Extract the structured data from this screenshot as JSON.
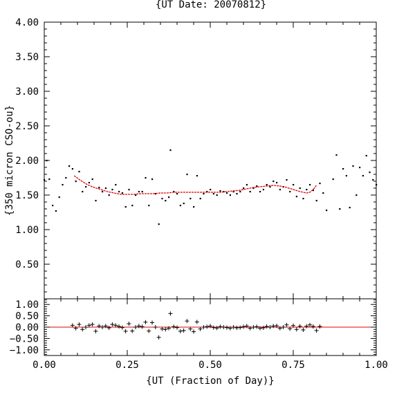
{
  "chart_data": [
    {
      "type": "scatter",
      "title": "{UT Date: 20070812}",
      "xlabel": "",
      "ylabel": "{350 micron CSO-ou}",
      "xlim": [
        0,
        1
      ],
      "ylim": [
        0,
        4
      ],
      "yticks": [
        "0.50",
        "1.00",
        "1.50",
        "2.00",
        "2.50",
        "3.00",
        "3.50",
        "4.00"
      ],
      "series": [
        {
          "marker": "dot",
          "color": "#000000",
          "x": [
            0.0,
            0.007,
            0.015,
            0.025,
            0.035,
            0.045,
            0.055,
            0.065,
            0.075,
            0.085,
            0.095,
            0.105,
            0.115,
            0.125,
            0.135,
            0.145,
            0.155,
            0.165,
            0.175,
            0.185,
            0.195,
            0.205,
            0.215,
            0.225,
            0.235,
            0.245,
            0.255,
            0.265,
            0.275,
            0.285,
            0.295,
            0.305,
            0.315,
            0.325,
            0.335,
            0.345,
            0.355,
            0.365,
            0.375,
            0.38,
            0.39,
            0.4,
            0.41,
            0.42,
            0.43,
            0.44,
            0.45,
            0.46,
            0.47,
            0.48,
            0.49,
            0.5,
            0.51,
            0.52,
            0.53,
            0.54,
            0.55,
            0.56,
            0.57,
            0.58,
            0.59,
            0.6,
            0.61,
            0.62,
            0.63,
            0.64,
            0.65,
            0.66,
            0.67,
            0.68,
            0.69,
            0.7,
            0.71,
            0.72,
            0.73,
            0.74,
            0.75,
            0.76,
            0.77,
            0.78,
            0.79,
            0.8,
            0.81,
            0.82,
            0.83,
            0.84,
            0.85,
            0.87,
            0.88,
            0.89,
            0.9,
            0.91,
            0.92,
            0.93,
            0.94,
            0.95,
            0.96,
            0.97,
            0.98,
            0.99,
            1.0
          ],
          "y": [
            1.72,
            2.0,
            1.73,
            1.35,
            1.27,
            1.47,
            1.65,
            1.75,
            1.92,
            1.88,
            1.7,
            1.84,
            1.55,
            1.62,
            1.68,
            1.73,
            1.42,
            1.61,
            1.55,
            1.6,
            1.5,
            1.58,
            1.65,
            1.55,
            1.53,
            1.33,
            1.58,
            1.35,
            1.5,
            1.55,
            1.55,
            1.75,
            1.35,
            1.73,
            1.52,
            1.08,
            1.45,
            1.42,
            1.47,
            2.15,
            1.55,
            1.52,
            1.35,
            1.38,
            1.8,
            1.45,
            1.33,
            1.78,
            1.45,
            1.52,
            1.55,
            1.58,
            1.52,
            1.5,
            1.56,
            1.55,
            1.53,
            1.5,
            1.55,
            1.52,
            1.55,
            1.6,
            1.65,
            1.55,
            1.6,
            1.63,
            1.55,
            1.58,
            1.65,
            1.62,
            1.7,
            1.68,
            1.58,
            1.62,
            1.72,
            1.55,
            1.65,
            1.48,
            1.6,
            1.45,
            1.58,
            1.65,
            1.57,
            1.42,
            1.67,
            1.53,
            1.28,
            1.73,
            2.08,
            1.3,
            1.88,
            1.78,
            1.32,
            1.92,
            1.5,
            1.9,
            1.78,
            2.07,
            1.83,
            1.72,
            1.65
          ]
        },
        {
          "marker": "line",
          "color": "#e00000",
          "x": [
            0.09,
            0.11,
            0.13,
            0.15,
            0.17,
            0.19,
            0.21,
            0.23,
            0.25,
            0.27,
            0.29,
            0.31,
            0.33,
            0.35,
            0.37,
            0.39,
            0.41,
            0.43,
            0.45,
            0.47,
            0.49,
            0.51,
            0.53,
            0.55,
            0.57,
            0.59,
            0.61,
            0.63,
            0.65,
            0.67,
            0.69,
            0.71,
            0.73,
            0.75,
            0.77,
            0.79,
            0.8,
            0.81,
            0.82
          ],
          "y": [
            1.78,
            1.71,
            1.65,
            1.61,
            1.58,
            1.55,
            1.53,
            1.51,
            1.51,
            1.51,
            1.52,
            1.52,
            1.52,
            1.53,
            1.53,
            1.54,
            1.54,
            1.54,
            1.54,
            1.54,
            1.54,
            1.54,
            1.54,
            1.55,
            1.56,
            1.57,
            1.59,
            1.61,
            1.62,
            1.63,
            1.64,
            1.63,
            1.61,
            1.58,
            1.55,
            1.53,
            1.54,
            1.58,
            1.64
          ]
        }
      ]
    },
    {
      "type": "scatter",
      "title": "",
      "xlabel": "{UT (Fraction of Day)}",
      "ylabel": "",
      "xlim": [
        0,
        1
      ],
      "ylim": [
        -1.25,
        1.25
      ],
      "xticks": [
        "0.00",
        "0.25",
        "0.50",
        "0.75",
        "1.00"
      ],
      "yticks": [
        "−1.00",
        "−0.50",
        "0.00",
        "0.50",
        "1.00"
      ],
      "reference_line": {
        "y": 0,
        "color": "#e00000"
      },
      "series": [
        {
          "marker": "plus",
          "color": "#000000",
          "x": [
            0.085,
            0.095,
            0.105,
            0.115,
            0.125,
            0.135,
            0.145,
            0.155,
            0.165,
            0.175,
            0.185,
            0.195,
            0.205,
            0.215,
            0.225,
            0.235,
            0.245,
            0.255,
            0.265,
            0.275,
            0.285,
            0.295,
            0.305,
            0.315,
            0.325,
            0.335,
            0.345,
            0.355,
            0.365,
            0.375,
            0.38,
            0.39,
            0.4,
            0.41,
            0.42,
            0.43,
            0.44,
            0.45,
            0.46,
            0.47,
            0.48,
            0.49,
            0.5,
            0.51,
            0.52,
            0.53,
            0.54,
            0.55,
            0.56,
            0.57,
            0.58,
            0.59,
            0.6,
            0.61,
            0.62,
            0.63,
            0.64,
            0.65,
            0.66,
            0.67,
            0.68,
            0.69,
            0.7,
            0.71,
            0.72,
            0.73,
            0.74,
            0.75,
            0.76,
            0.77,
            0.78,
            0.79,
            0.8,
            0.81,
            0.82,
            0.83
          ],
          "y": [
            0.08,
            -0.05,
            0.12,
            -0.1,
            0.0,
            0.08,
            0.12,
            -0.18,
            0.05,
            0.0,
            0.05,
            -0.03,
            0.12,
            0.08,
            0.03,
            -0.02,
            -0.18,
            0.15,
            -0.17,
            0.0,
            0.05,
            0.02,
            0.22,
            -0.17,
            0.2,
            0.0,
            -0.45,
            -0.08,
            -0.1,
            -0.05,
            0.6,
            0.02,
            -0.02,
            -0.18,
            -0.15,
            0.27,
            -0.08,
            -0.2,
            0.23,
            -0.08,
            0.0,
            0.02,
            0.05,
            -0.02,
            -0.04,
            0.02,
            0.0,
            -0.02,
            -0.05,
            0.0,
            -0.03,
            -0.02,
            0.02,
            0.05,
            -0.05,
            0.0,
            0.02,
            -0.05,
            -0.03,
            0.03,
            0.0,
            0.05,
            0.06,
            -0.05,
            0.0,
            0.1,
            -0.07,
            0.07,
            -0.1,
            0.04,
            -0.12,
            0.04,
            0.1,
            0.03,
            -0.15,
            0.03
          ]
        }
      ]
    }
  ]
}
